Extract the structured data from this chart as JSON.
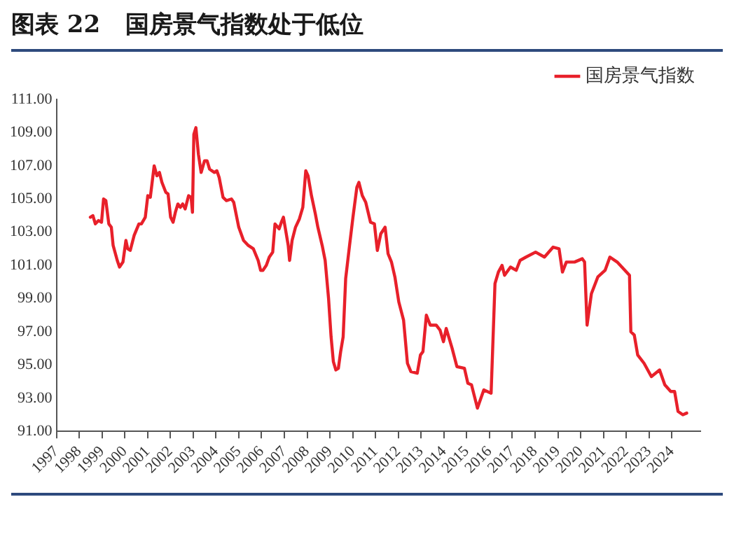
{
  "chart_data": {
    "type": "line",
    "title": "图表 22   国房景气指数处于低位",
    "series": [
      {
        "name": "国房景气指数",
        "color": "#e8202a",
        "x": [
          1998.49,
          1998.6,
          1998.71,
          1998.85,
          1998.98,
          1999.07,
          1999.17,
          1999.3,
          1999.41,
          1999.49,
          1999.67,
          1999.77,
          1999.92,
          2000.05,
          2000.13,
          2000.24,
          2000.41,
          2000.62,
          2000.73,
          2000.9,
          2001.01,
          2001.12,
          2001.29,
          2001.41,
          2001.52,
          2001.63,
          2001.8,
          2001.9,
          2002.01,
          2002.12,
          2002.22,
          2002.33,
          2002.44,
          2002.54,
          2002.65,
          2002.8,
          2002.91,
          2002.97,
          2003.03,
          2003.12,
          2003.23,
          2003.35,
          2003.5,
          2003.61,
          2003.72,
          2003.82,
          2003.93,
          2004.04,
          2004.14,
          2004.31,
          2004.46,
          2004.68,
          2004.78,
          2005.0,
          2005.21,
          2005.42,
          2005.64,
          2005.85,
          2005.96,
          2006.06,
          2006.21,
          2006.34,
          2006.49,
          2006.59,
          2006.77,
          2006.87,
          2006.96,
          2007.06,
          2007.17,
          2007.23,
          2007.34,
          2007.49,
          2007.66,
          2007.81,
          2007.94,
          2008.04,
          2008.19,
          2008.36,
          2008.47,
          2008.66,
          2008.79,
          2008.94,
          2009.05,
          2009.15,
          2009.26,
          2009.37,
          2009.47,
          2009.58,
          2009.69,
          2009.86,
          2010.01,
          2010.18,
          2010.27,
          2010.42,
          2010.57,
          2010.78,
          2010.95,
          2011.08,
          2011.23,
          2011.42,
          2011.55,
          2011.7,
          2011.85,
          2012.02,
          2012.23,
          2012.4,
          2012.55,
          2012.83,
          2012.97,
          2013.08,
          2013.23,
          2013.4,
          2013.66,
          2013.83,
          2013.98,
          2014.1,
          2014.36,
          2014.57,
          2014.9,
          2015.05,
          2015.21,
          2015.47,
          2015.75,
          2016.07,
          2016.24,
          2016.39,
          2016.55,
          2016.66,
          2016.92,
          2017.17,
          2017.34,
          2017.6,
          2018.02,
          2018.41,
          2018.79,
          2019.05,
          2019.2,
          2019.37,
          2019.73,
          2020.07,
          2020.17,
          2020.28,
          2020.47,
          2020.75,
          2021.07,
          2021.28,
          2021.6,
          2022.14,
          2022.2,
          2022.35,
          2022.5,
          2022.78,
          2023.1,
          2023.46,
          2023.69,
          2023.95,
          2024.12,
          2024.27,
          2024.48,
          2024.65
        ],
        "values": [
          103.9,
          104.0,
          103.5,
          103.7,
          103.6,
          105.0,
          104.9,
          103.5,
          103.3,
          102.2,
          101.3,
          100.9,
          101.2,
          102.5,
          102.0,
          101.9,
          102.8,
          103.5,
          103.5,
          103.9,
          105.2,
          105.1,
          107.0,
          106.4,
          106.6,
          106.0,
          105.4,
          105.3,
          103.9,
          103.6,
          104.2,
          104.7,
          104.5,
          104.7,
          104.4,
          105.2,
          105.1,
          104.2,
          108.9,
          109.3,
          107.7,
          106.6,
          107.3,
          107.3,
          106.8,
          106.7,
          106.6,
          106.7,
          106.3,
          105.1,
          104.9,
          105.0,
          104.8,
          103.3,
          102.5,
          102.2,
          102.0,
          101.3,
          100.7,
          100.7,
          101.0,
          101.5,
          101.8,
          103.5,
          103.2,
          103.6,
          103.9,
          103.1,
          102.2,
          101.3,
          102.5,
          103.3,
          103.8,
          104.5,
          106.7,
          106.4,
          105.2,
          104.1,
          103.3,
          102.2,
          101.3,
          99.0,
          96.7,
          95.2,
          94.7,
          94.8,
          95.8,
          96.7,
          100.2,
          102.2,
          103.9,
          105.7,
          106.0,
          105.2,
          104.8,
          103.6,
          103.5,
          101.9,
          102.9,
          103.3,
          101.7,
          101.2,
          100.3,
          98.8,
          97.7,
          95.1,
          94.6,
          94.5,
          95.6,
          95.8,
          98.0,
          97.4,
          97.4,
          97.1,
          96.4,
          97.2,
          96.0,
          94.9,
          94.8,
          93.9,
          93.8,
          92.4,
          93.5,
          93.3,
          99.9,
          100.6,
          101.0,
          100.4,
          100.9,
          100.7,
          101.3,
          101.5,
          101.8,
          101.5,
          102.1,
          102.0,
          100.6,
          101.2,
          101.2,
          101.4,
          101.2,
          97.4,
          99.3,
          100.3,
          100.7,
          101.5,
          101.2,
          100.4,
          97.0,
          96.8,
          95.6,
          95.1,
          94.3,
          94.7,
          93.8,
          93.4,
          93.4,
          92.2,
          92.0,
          92.1
        ]
      }
    ],
    "xlim": [
      1997,
      2025.25
    ],
    "xticks": [
      1997,
      1998,
      1999,
      2000,
      2001,
      2002,
      2003,
      2004,
      2005,
      2006,
      2007,
      2008,
      2009,
      2010,
      2011,
      2012,
      2013,
      2014,
      2015,
      2016,
      2017,
      2018,
      2019,
      2020,
      2021,
      2022,
      2023,
      2024
    ],
    "ylim": [
      91,
      111
    ],
    "yticks": [
      {
        "value": 91,
        "label": "91.00"
      },
      {
        "value": 93,
        "label": "93.00"
      },
      {
        "value": 95,
        "label": "95.00"
      },
      {
        "value": 97,
        "label": "97.00"
      },
      {
        "value": 99,
        "label": "99.00"
      },
      {
        "value": 101,
        "label": "101.00"
      },
      {
        "value": 103,
        "label": "103.00"
      },
      {
        "value": 105,
        "label": "105.00"
      },
      {
        "value": 107,
        "label": "107.00"
      },
      {
        "value": 109,
        "label": "109.00"
      },
      {
        "value": 111,
        "label": "111.00"
      }
    ],
    "grid": false,
    "legend": "top right",
    "marker": "none",
    "line_style": "solid"
  }
}
